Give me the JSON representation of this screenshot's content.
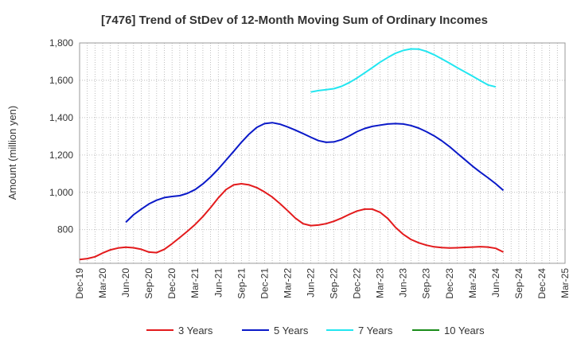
{
  "chart_data": {
    "type": "line",
    "title": "[7476]  Trend of StDev of 12-Month Moving Sum of Ordinary Incomes",
    "xlabel": "",
    "ylabel": "Amount (million yen)",
    "ylim": [
      620,
      1800
    ],
    "yticks": [
      800,
      1000,
      1200,
      1400,
      1600,
      1800
    ],
    "ytick_labels": [
      "800",
      "1,000",
      "1,200",
      "1,400",
      "1,600",
      "1,800"
    ],
    "xtick_labels": [
      "Dec-19",
      "Mar-20",
      "Jun-20",
      "Sep-20",
      "Dec-20",
      "Mar-21",
      "Jun-21",
      "Sep-21",
      "Dec-21",
      "Mar-22",
      "Jun-22",
      "Sep-22",
      "Dec-22",
      "Mar-23",
      "Jun-23",
      "Sep-23",
      "Dec-23",
      "Mar-24",
      "Jun-24",
      "Sep-24",
      "Dec-24",
      "Mar-25"
    ],
    "grid": true,
    "legend_position": "bottom",
    "series": [
      {
        "name": "3 Years",
        "color": "#e31a1c",
        "start_index": 0,
        "values": [
          640,
          645,
          655,
          675,
          692,
          702,
          706,
          703,
          695,
          680,
          677,
          695,
          725,
          758,
          792,
          828,
          870,
          918,
          970,
          1015,
          1040,
          1046,
          1040,
          1025,
          1002,
          975,
          940,
          902,
          862,
          832,
          822,
          825,
          832,
          845,
          862,
          882,
          900,
          910,
          910,
          893,
          860,
          812,
          775,
          748,
          730,
          717,
          708,
          704,
          702,
          703,
          705,
          707,
          709,
          707,
          700,
          680
        ]
      },
      {
        "name": "5 Years",
        "color": "#0a19c8",
        "start_index": 6,
        "values": [
          840,
          880,
          910,
          938,
          958,
          972,
          978,
          982,
          995,
          1015,
          1045,
          1082,
          1125,
          1172,
          1220,
          1268,
          1312,
          1348,
          1368,
          1373,
          1365,
          1350,
          1333,
          1315,
          1295,
          1277,
          1268,
          1270,
          1282,
          1302,
          1325,
          1342,
          1353,
          1360,
          1366,
          1368,
          1366,
          1358,
          1344,
          1325,
          1303,
          1276,
          1245,
          1210,
          1175,
          1140,
          1108,
          1078,
          1046,
          1010
        ]
      },
      {
        "name": "7 Years",
        "color": "#22e6f0",
        "start_index": 30,
        "values": [
          1537,
          1545,
          1550,
          1555,
          1568,
          1588,
          1612,
          1640,
          1668,
          1697,
          1722,
          1745,
          1760,
          1768,
          1767,
          1755,
          1737,
          1715,
          1692,
          1668,
          1645,
          1622,
          1598,
          1575,
          1565
        ]
      },
      {
        "name": "10 Years",
        "color": "#1a8c1a",
        "start_index": 0,
        "values": []
      }
    ]
  }
}
